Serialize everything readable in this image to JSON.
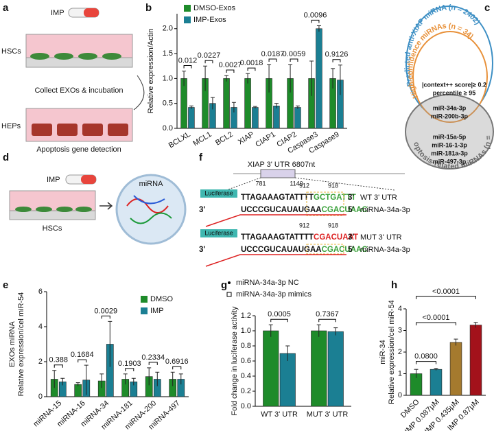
{
  "figure_a": {
    "letter": "a",
    "imp": "IMP",
    "hscs": "HSCs",
    "step": "Collect EXOs & incubation",
    "heps": "HEPs",
    "detection": "Apoptosis gene detection"
  },
  "figure_c": {
    "letter": "c",
    "outer": "Predicted anti-XIAP miRNA (n = 2402)",
    "middle": "High-confidence miRNAs (n = 34)",
    "criterion1": "|context++ score|≥ 0.2",
    "criterion2": "percentile ≥ 95",
    "shared": [
      "miR-34a-3p",
      "miR-200b-3p"
    ],
    "others": [
      "miR-15a-5p",
      "miR-16-1-3p",
      "miR-181a-3p",
      "miR-497-3p"
    ],
    "lower": "Apoptosis-related miRNAs (n = 6)"
  },
  "figure_d": {
    "letter": "d",
    "imp": "IMP",
    "mirna": "miRNA",
    "hscs": "HSCs"
  },
  "figure_f": {
    "letter": "f",
    "utr": "XIAP 3' UTR 6807nt",
    "start": "781",
    "end": "1140",
    "luciferase": "Luciferase",
    "five": "5'",
    "three": "3'",
    "wt": {
      "seq": "TTAGAAAGTATTTT",
      "site": "GCTGATTT",
      "name": "WT 3' UTR",
      "pos1": "912",
      "pos2": "918"
    },
    "mirna": {
      "seq": "UCCCGUCAUAUGAA",
      "site": "CGACUAAC",
      "name": "miRNA-34a-3p"
    },
    "mut": {
      "seq": "TTAGAAAGTATTTT",
      "site": "CGACUAAT",
      "name": "MUT 3' UTR"
    }
  },
  "chart_data": [
    {
      "panel": "b",
      "type": "bar",
      "ylabel": [
        "Relative expression/Actin"
      ],
      "categories": [
        "BCLXL",
        "MCL1",
        "BCL2",
        "XIAP",
        "CIAP1",
        "CIAP2",
        "Caspase3",
        "Caspase9"
      ],
      "series": [
        {
          "name": "DMSO-Exos",
          "color": "#1e8b2a",
          "values": [
            1.0,
            1.0,
            1.0,
            1.0,
            1.0,
            1.0,
            1.0,
            1.0
          ],
          "errors": [
            0.15,
            0.25,
            0.06,
            0.1,
            0.28,
            0.28,
            0.35,
            0.2
          ]
        },
        {
          "name": "IMP-Exos",
          "color": "#1b7f93",
          "values": [
            0.42,
            0.5,
            0.42,
            0.42,
            0.45,
            0.42,
            2.0,
            0.97
          ],
          "errors": [
            0.03,
            0.12,
            0.1,
            0.02,
            0.05,
            0.03,
            0.06,
            0.3
          ]
        }
      ],
      "p_values": [
        "0.012",
        "0.0227",
        "0.0027",
        "0.0018",
        "0.0187",
        "0.0059",
        "0.0096",
        "0.9126"
      ],
      "ylim": [
        0,
        2.3
      ],
      "yticks": [
        {
          "value": 0,
          "label": "0.0"
        },
        0.5,
        {
          "value": 1,
          "label": "1.0"
        },
        1.5,
        {
          "value": 2,
          "label": "2.0"
        }
      ]
    },
    {
      "panel": "e",
      "type": "bar",
      "ylabel": [
        "EXOs miRNA",
        "Relative expression/cel miR-54"
      ],
      "categories": [
        "miRNA-15",
        "miRNA-16",
        "miRNA-34",
        "miRNA-181",
        "miRNA-200",
        "miRNA-497"
      ],
      "series": [
        {
          "name": "DMSO",
          "color": "#1e8b2a",
          "values": [
            1.0,
            0.7,
            0.9,
            1.0,
            1.15,
            1.0
          ],
          "errors": [
            0.5,
            0.1,
            0.4,
            0.3,
            0.5,
            0.4
          ]
        },
        {
          "name": "IMP",
          "color": "#1b7f93",
          "values": [
            0.85,
            0.95,
            3.0,
            0.85,
            1.0,
            1.0
          ],
          "errors": [
            0.2,
            0.85,
            1.3,
            0.2,
            0.4,
            0.3
          ]
        }
      ],
      "p_values": [
        "0.388",
        "0.1684",
        "0.0029",
        "0.1903",
        "0.2334",
        "0.6916"
      ],
      "ylim": [
        0,
        6
      ],
      "yticks": [
        0,
        2,
        4,
        6
      ]
    },
    {
      "panel": "g",
      "type": "bar",
      "ylabel": [
        "Fold change in luciferase activity"
      ],
      "categories": [
        "WT 3' UTR",
        "MUT 3' UTR"
      ],
      "series": [
        {
          "name": "miRNA-34a-3p NC",
          "color": "#1e8b2a",
          "marker": "circle",
          "values": [
            1.0,
            1.0
          ],
          "errors": [
            0.08,
            0.08
          ]
        },
        {
          "name": "miRNA-34a-3p mimics",
          "color": "#1b7f93",
          "marker": "square",
          "values": [
            0.7,
            0.99
          ],
          "errors": [
            0.1,
            0.05
          ]
        }
      ],
      "p_values": [
        "0.0005",
        "0.7367"
      ],
      "ylim": [
        0,
        1.2
      ],
      "yticks": [
        {
          "value": 0,
          "label": "0.0"
        },
        0.2,
        0.4,
        0.6,
        0.8,
        {
          "value": 1,
          "label": "1.0"
        },
        1.2
      ]
    },
    {
      "panel": "h",
      "type": "bar",
      "ylabel": [
        "miR-34",
        "Relative expression/cel miR-54"
      ],
      "categories": [
        "DMSO",
        "IMP 0.087μM",
        "IMP 0.435μM",
        "IMP 0.87μM"
      ],
      "values": [
        1.0,
        1.2,
        2.45,
        3.25
      ],
      "errors": [
        0.2,
        0.05,
        0.15,
        0.12
      ],
      "colors": [
        "#1e8b2a",
        "#1b7f93",
        "#a57a2e",
        "#a3121b"
      ],
      "p_values": [
        null,
        "0.0800",
        "<0.0001",
        "<0.0001"
      ],
      "ylim": [
        0,
        4
      ],
      "yticks": [
        0,
        1,
        2,
        3,
        4
      ]
    }
  ]
}
